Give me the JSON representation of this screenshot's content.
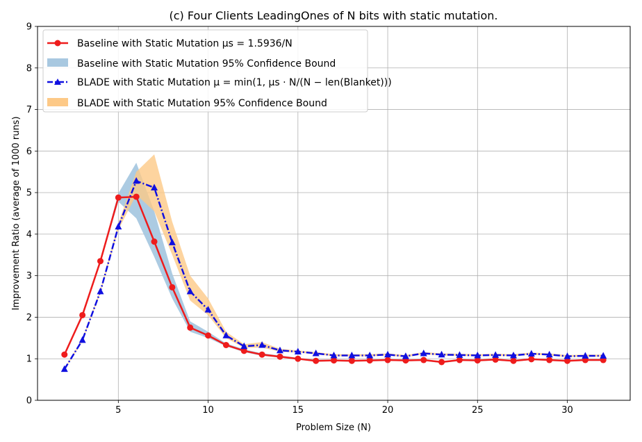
{
  "chart_data": {
    "type": "line",
    "title": "(c) Four Clients LeadingOnes of N bits with static mutation.",
    "xlabel": "Problem Size (N)",
    "ylabel": "Improvement Ratio (average of 1000 runs)",
    "xlim": [
      0.5,
      33.5
    ],
    "ylim": [
      0,
      9
    ],
    "xticks": [
      5,
      10,
      15,
      20,
      25,
      30
    ],
    "yticks": [
      0,
      1,
      2,
      3,
      4,
      5,
      6,
      7,
      8,
      9
    ],
    "grid": true,
    "legend_position": "top-left",
    "x": [
      2,
      3,
      4,
      5,
      6,
      7,
      8,
      9,
      10,
      11,
      12,
      13,
      14,
      15,
      16,
      17,
      18,
      19,
      20,
      21,
      22,
      23,
      24,
      25,
      26,
      27,
      28,
      29,
      30,
      31,
      32
    ],
    "series": [
      {
        "name": "Baseline with Static Mutation μs = 1.5936/N",
        "color": "#ee1c1c",
        "marker": "circle",
        "linestyle": "solid",
        "values": [
          1.1,
          2.05,
          3.35,
          4.88,
          4.9,
          3.82,
          2.72,
          1.75,
          1.56,
          1.33,
          1.19,
          1.1,
          1.05,
          1.0,
          0.95,
          0.96,
          0.95,
          0.96,
          0.97,
          0.96,
          0.97,
          0.92,
          0.97,
          0.96,
          0.98,
          0.95,
          0.99,
          0.97,
          0.95,
          0.97,
          0.97
        ],
        "band_name": "Baseline with Static Mutation 95% Confidence Bound",
        "band_color": "#a8c8e0",
        "band_lower": [
          1.08,
          2.0,
          3.3,
          4.78,
          4.38,
          3.45,
          2.45,
          1.65,
          1.5,
          1.3,
          1.16,
          1.07,
          1.03,
          0.98,
          0.93,
          0.94,
          0.93,
          0.94,
          0.95,
          0.94,
          0.95,
          0.9,
          0.95,
          0.94,
          0.96,
          0.93,
          0.97,
          0.95,
          0.93,
          0.95,
          0.95
        ],
        "band_upper": [
          1.12,
          2.1,
          3.4,
          4.98,
          5.72,
          4.55,
          3.05,
          1.9,
          1.65,
          1.37,
          1.23,
          1.13,
          1.08,
          1.02,
          0.98,
          0.98,
          0.97,
          0.98,
          0.99,
          0.98,
          0.99,
          0.94,
          0.99,
          0.98,
          1.0,
          0.97,
          1.01,
          0.99,
          0.97,
          0.99,
          0.99
        ]
      },
      {
        "name": "BLADE with Static Mutation μ = min(1, μs · N/(N − len(Blanket)))",
        "color": "#1010e0",
        "marker": "triangle",
        "linestyle": "dashdot",
        "values": [
          0.75,
          1.45,
          2.62,
          4.18,
          5.28,
          5.12,
          3.8,
          2.62,
          2.18,
          1.56,
          1.3,
          1.33,
          1.2,
          1.17,
          1.13,
          1.08,
          1.08,
          1.08,
          1.1,
          1.06,
          1.13,
          1.1,
          1.09,
          1.08,
          1.09,
          1.08,
          1.12,
          1.1,
          1.06,
          1.07,
          1.07
        ],
        "band_name": "BLADE with Static Mutation 95% Confidence Bound",
        "band_color": "#fdc987",
        "band_lower": [
          0.73,
          1.42,
          2.58,
          4.1,
          4.95,
          4.55,
          3.5,
          2.4,
          2.05,
          1.5,
          1.26,
          1.27,
          1.17,
          1.15,
          1.11,
          1.06,
          1.06,
          1.06,
          1.08,
          1.04,
          1.11,
          1.08,
          1.07,
          1.06,
          1.07,
          1.06,
          1.1,
          1.08,
          1.04,
          1.05,
          1.05
        ],
        "band_upper": [
          0.77,
          1.48,
          2.66,
          4.26,
          5.5,
          5.92,
          4.3,
          3.0,
          2.45,
          1.65,
          1.35,
          1.4,
          1.24,
          1.2,
          1.16,
          1.11,
          1.11,
          1.11,
          1.13,
          1.09,
          1.16,
          1.13,
          1.12,
          1.11,
          1.12,
          1.11,
          1.15,
          1.13,
          1.09,
          1.1,
          1.1
        ]
      }
    ]
  }
}
